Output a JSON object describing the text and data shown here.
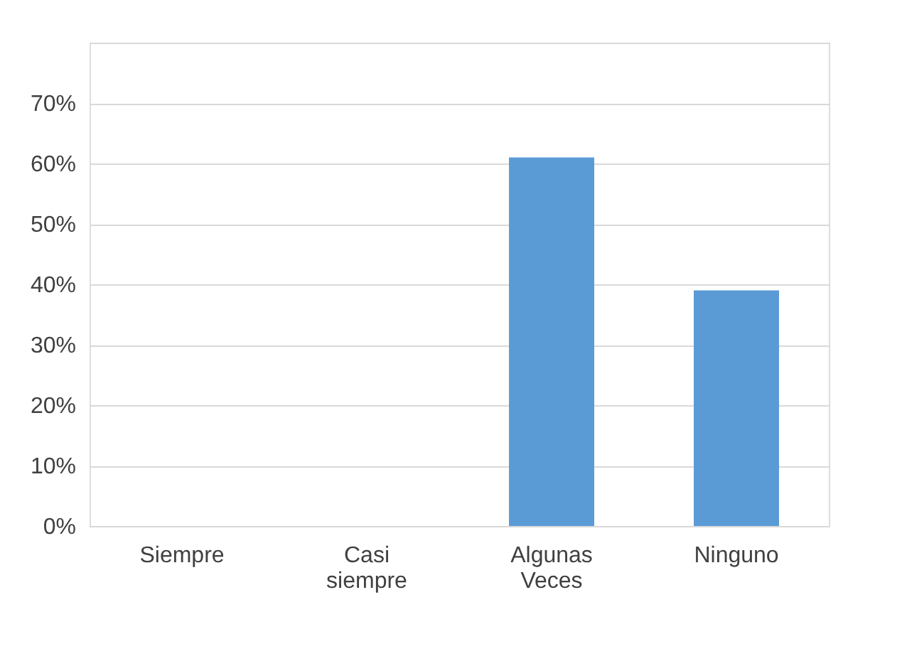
{
  "chart_data": {
    "type": "bar",
    "categories": [
      "Siempre",
      "Casi siempre",
      "Algunas Veces",
      "Ninguno"
    ],
    "values": [
      0,
      0,
      0.61,
      0.39
    ],
    "color": "#5b9bd5",
    "ylim": [
      0,
      0.8
    ],
    "yticks": [
      {
        "value": 0,
        "label": "0%"
      },
      {
        "value": 0.1,
        "label": "10%"
      },
      {
        "value": 0.2,
        "label": "20%"
      },
      {
        "value": 0.3,
        "label": "30%"
      },
      {
        "value": 0.4,
        "label": "40%"
      },
      {
        "value": 0.5,
        "label": "50%"
      },
      {
        "value": 0.6,
        "label": "60%"
      },
      {
        "value": 0.7,
        "label": "70%"
      },
      {
        "value": 0.8,
        "label": null
      }
    ],
    "grid": "y"
  }
}
